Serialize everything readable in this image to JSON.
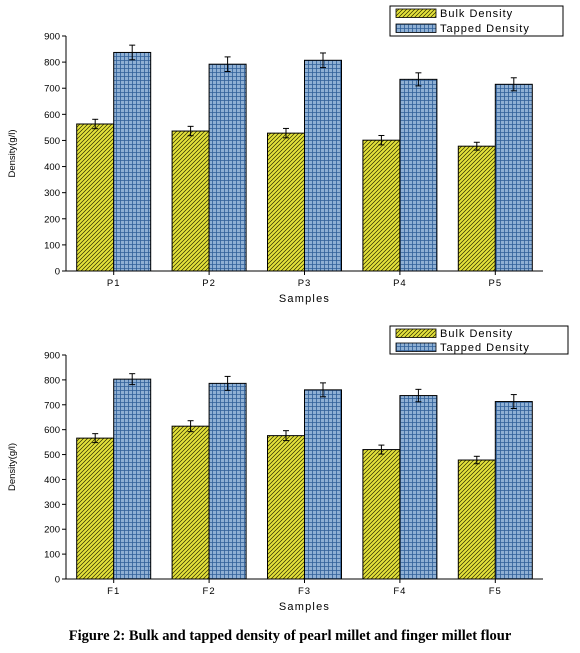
{
  "caption": "Figure 2: Bulk and tapped density of pearl millet and finger millet flour",
  "colors": {
    "bulk_fill": "#e4e23a",
    "bulk_pattern": "#2a2a00",
    "tapped_fill": "#8fb0d4",
    "tapped_grid": "#2f5f98",
    "axis": "#000000"
  },
  "chart_data": [
    {
      "type": "bar",
      "title": "",
      "xlabel": "Samples",
      "ylabel": "Density(g/l)",
      "ylim": [
        0,
        900
      ],
      "yticks": [
        "0",
        "100",
        "200",
        "300",
        "400",
        "500",
        "600",
        "700",
        "800",
        "900"
      ],
      "categories": [
        "P1",
        "P2",
        "P3",
        "P4",
        "P5"
      ],
      "legend_position": "top-right",
      "series": [
        {
          "name": "Bulk Density",
          "values": [
            563,
            536,
            528,
            501,
            478
          ],
          "errors": [
            18,
            18,
            18,
            18,
            15
          ]
        },
        {
          "name": "Tapped Density",
          "values": [
            837,
            792,
            807,
            734,
            715
          ],
          "errors": [
            28,
            28,
            28,
            25,
            25
          ]
        }
      ]
    },
    {
      "type": "bar",
      "title": "",
      "xlabel": "Samples",
      "ylabel": "Density(g/l)",
      "ylim": [
        0,
        900
      ],
      "yticks": [
        "0",
        "100",
        "200",
        "300",
        "400",
        "500",
        "600",
        "700",
        "800",
        "900"
      ],
      "categories": [
        "F1",
        "F2",
        "F3",
        "F4",
        "F5"
      ],
      "legend_position": "top-right",
      "series": [
        {
          "name": "Bulk Density",
          "values": [
            566,
            614,
            576,
            520,
            478
          ],
          "errors": [
            18,
            22,
            20,
            18,
            15
          ]
        },
        {
          "name": "Tapped Density",
          "values": [
            803,
            786,
            760,
            737,
            713
          ],
          "errors": [
            22,
            28,
            28,
            25,
            28
          ]
        }
      ]
    }
  ]
}
